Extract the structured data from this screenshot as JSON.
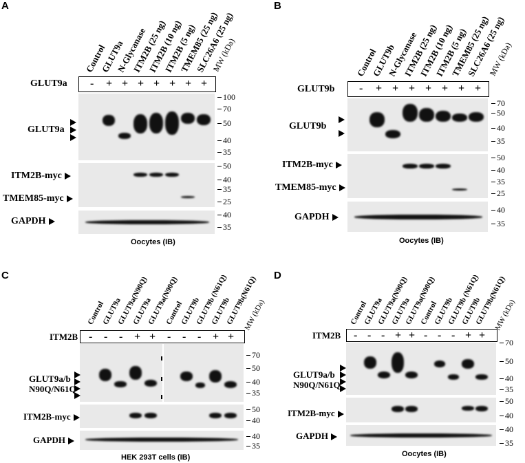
{
  "panels": {
    "A": {
      "label": "A",
      "lanes": [
        "Control",
        "GLUT9a",
        "N-Glycanase",
        "ITM2B (25 ng)",
        "ITM2B (10 ng)",
        "ITM2B (5 ng)",
        "TMEM85 (25 ng)",
        "SLC26A6 (25 ng)",
        "MW (kDa)"
      ],
      "treat_label": "GLUT9a",
      "treat": [
        "-",
        "+",
        "+",
        "+",
        "+",
        "+",
        "+",
        "+"
      ],
      "blot1_label": "GLUT9a",
      "blot2_labels": [
        "ITM2B-myc",
        "TMEM85-myc"
      ],
      "blot3_label": "GAPDH",
      "mw1": [
        "100",
        "70",
        "50",
        "40",
        "35"
      ],
      "mw2": [
        "50",
        "40",
        "35",
        "25"
      ],
      "mw3": [
        "40",
        "35"
      ],
      "caption": "Oocytes (IB)"
    },
    "B": {
      "label": "B",
      "lanes": [
        "Control",
        "GLUT9b",
        "N-Glycanase",
        "ITM2B (25 ng)",
        "ITM2B (10 ng)",
        "ITM2B (5 ng)",
        "TMEM85 (25 ng)",
        "SLC26A6 (25 ng)",
        "MW (kDa)"
      ],
      "treat_label": "GLUT9b",
      "treat": [
        "-",
        "+",
        "+",
        "+",
        "+",
        "+",
        "+",
        "+"
      ],
      "blot1_label": "GLUT9b",
      "blot2_labels": [
        "ITM2B-myc",
        "TMEM85-myc"
      ],
      "blot3_label": "GAPDH",
      "mw1": [
        "70",
        "50",
        "40",
        "35"
      ],
      "mw2": [
        "50",
        "40",
        "35",
        "25"
      ],
      "mw3": [
        "40",
        "35"
      ],
      "caption": "Oocytes (IB)"
    },
    "C": {
      "label": "C",
      "lanes": [
        "Control",
        "GLUT9a",
        "GLUT9a(N90Q)",
        "GLUT9a",
        "GLUT9a(N90Q)",
        "Control",
        "GLUT9b",
        "GLUT9b (N61Q)",
        "GLUT9b",
        "GLUT9b(N61Q)",
        "MW (kDa)"
      ],
      "treat_label": "ITM2B",
      "treat": [
        "-",
        "-",
        "-",
        "+",
        "+",
        "-",
        "-",
        "-",
        "+",
        "+"
      ],
      "blot1_labels": [
        "GLUT9a/b",
        "N90Q/N61Q"
      ],
      "blot2_label": "ITM2B-myc",
      "blot3_label": "GAPDH",
      "mw1": [
        "70",
        "50",
        "40",
        "35"
      ],
      "mw2": [
        "50",
        "40"
      ],
      "mw3": [
        "40",
        "35"
      ],
      "caption": "HEK 293T cells (IB)"
    },
    "D": {
      "label": "D",
      "lanes": [
        "Control",
        "GLUT9a",
        "GLUT9a(N90Q)",
        "GLUT9a",
        "GLUT9a(N90Q)",
        "Control",
        "GLUT9b",
        "GLUT9b (N61Q)",
        "GLUT9b",
        "GLUT9b(N61Q)",
        "MW (kDa)"
      ],
      "treat_label": "ITM2B",
      "treat": [
        "-",
        "-",
        "-",
        "+",
        "+",
        "-",
        "-",
        "-",
        "+",
        "+"
      ],
      "blot1_labels": [
        "GLUT9a/b",
        "N90Q/N61Q"
      ],
      "blot2_label": "ITM2B-myc",
      "blot3_label": "GAPDH",
      "mw1": [
        "70",
        "50",
        "40",
        "35"
      ],
      "mw2": [
        "50",
        "40"
      ],
      "mw3": [
        "40",
        "35"
      ],
      "caption": "Oocytes (IB)"
    }
  }
}
